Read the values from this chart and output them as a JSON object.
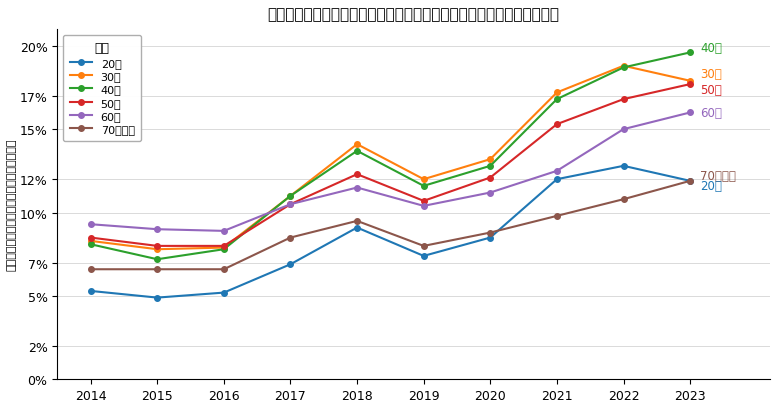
{
  "title": "年代ごとの投資関連キーワードの検索ユーザーの年次ユーザー割合推移",
  "ylabel": "投資関連キーワードを検索したユーザー割合",
  "years": [
    2014,
    2015,
    2016,
    2017,
    2018,
    2019,
    2020,
    2021,
    2022,
    2023
  ],
  "series": {
    "20代": [
      5.3,
      4.9,
      5.2,
      6.9,
      9.1,
      7.4,
      8.5,
      12.0,
      12.8,
      11.9
    ],
    "30代": [
      8.3,
      7.8,
      7.9,
      11.0,
      14.1,
      12.0,
      13.2,
      17.2,
      18.8,
      17.9
    ],
    "40代": [
      8.1,
      7.2,
      7.8,
      11.0,
      13.7,
      11.6,
      12.8,
      16.8,
      18.7,
      19.6
    ],
    "50代": [
      8.5,
      8.0,
      8.0,
      10.5,
      12.3,
      10.7,
      12.1,
      15.3,
      16.8,
      17.7
    ],
    "60代": [
      9.3,
      9.0,
      8.9,
      10.5,
      11.5,
      10.4,
      11.2,
      12.5,
      15.0,
      16.0
    ],
    "70代以上": [
      6.6,
      6.6,
      6.6,
      8.5,
      9.5,
      8.0,
      8.8,
      9.8,
      10.8,
      11.9
    ]
  },
  "colors": {
    "20代": "#1f77b4",
    "30代": "#ff7f0e",
    "40代": "#2ca02c",
    "50代": "#d62728",
    "60代": "#9467bd",
    "70代以上": "#8c564b"
  },
  "yticks": [
    0,
    2,
    5,
    7,
    10,
    12,
    15,
    17,
    20
  ],
  "ytick_labels": [
    "0%",
    "2%",
    "5%",
    "7%",
    "10%",
    "12%",
    "15%",
    "17%",
    "20%"
  ],
  "ylim": [
    0,
    21
  ],
  "end_label_order": [
    "40代",
    "30代",
    "50代",
    "60代",
    "70代以上",
    "20代"
  ],
  "end_label_ypos": {
    "40代": 19.9,
    "30代": 18.35,
    "50代": 17.4,
    "60代": 16.0,
    "70代以上": 12.2,
    "20代": 11.6
  }
}
